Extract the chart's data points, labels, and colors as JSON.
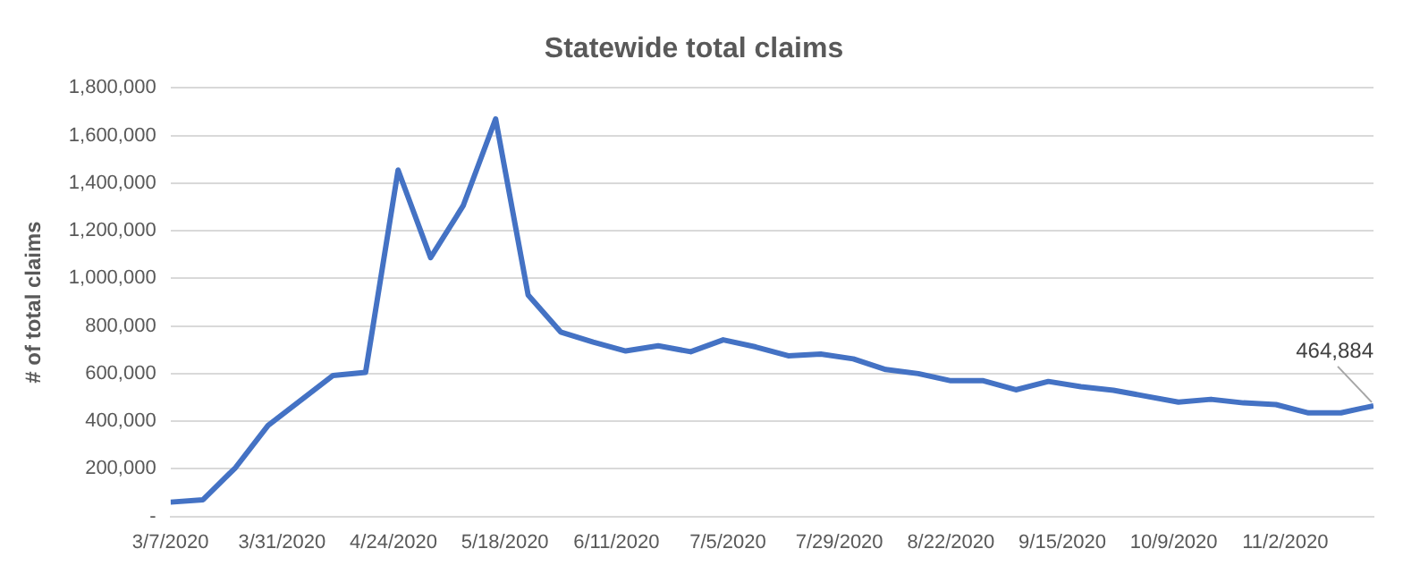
{
  "chart_data": {
    "type": "line",
    "title": "Statewide total claims",
    "ylabel": "# of total claims",
    "x": [
      "2020-03-07",
      "2020-03-14",
      "2020-03-21",
      "2020-03-28",
      "2020-04-04",
      "2020-04-11",
      "2020-04-18",
      "2020-04-25",
      "2020-05-02",
      "2020-05-09",
      "2020-05-16",
      "2020-05-23",
      "2020-05-30",
      "2020-06-06",
      "2020-06-13",
      "2020-06-20",
      "2020-06-27",
      "2020-07-04",
      "2020-07-11",
      "2020-07-18",
      "2020-07-25",
      "2020-08-01",
      "2020-08-08",
      "2020-08-15",
      "2020-08-22",
      "2020-08-29",
      "2020-09-05",
      "2020-09-12",
      "2020-09-19",
      "2020-09-26",
      "2020-10-03",
      "2020-10-10",
      "2020-10-17",
      "2020-10-24",
      "2020-10-31",
      "2020-11-07",
      "2020-11-14",
      "2020-11-21"
    ],
    "series": [
      {
        "color": "#4472c4",
        "values": [
          60000,
          70000,
          205000,
          382000,
          487000,
          592000,
          605000,
          1455000,
          1087000,
          1305000,
          1670000,
          930000,
          775000,
          732000,
          695000,
          717000,
          692000,
          742000,
          712000,
          675000,
          682000,
          662000,
          617000,
          600000,
          570000,
          570000,
          532000,
          567000,
          545000,
          530000,
          505000,
          480000,
          492000,
          477000,
          470000,
          435000,
          435000,
          464884
        ]
      }
    ],
    "xlim": [
      "2020-03-07",
      "2020-11-21"
    ],
    "xticks": [
      {
        "value": "2020-03-07",
        "label": "3/7/2020"
      },
      {
        "value": "2020-03-31",
        "label": "3/31/2020"
      },
      {
        "value": "2020-04-24",
        "label": "4/24/2020"
      },
      {
        "value": "2020-05-18",
        "label": "5/18/2020"
      },
      {
        "value": "2020-06-11",
        "label": "6/11/2020"
      },
      {
        "value": "2020-07-05",
        "label": "7/5/2020"
      },
      {
        "value": "2020-07-29",
        "label": "7/29/2020"
      },
      {
        "value": "2020-08-22",
        "label": "8/22/2020"
      },
      {
        "value": "2020-09-15",
        "label": "9/15/2020"
      },
      {
        "value": "2020-10-09",
        "label": "10/9/2020"
      },
      {
        "value": "2020-11-02",
        "label": "11/2/2020"
      }
    ],
    "ylim": [
      0,
      1800000
    ],
    "yticks": [
      {
        "value": 0,
        "label": "-"
      },
      {
        "value": 200000,
        "label": "200,000"
      },
      {
        "value": 400000,
        "label": "400,000"
      },
      {
        "value": 600000,
        "label": "600,000"
      },
      {
        "value": 800000,
        "label": "800,000"
      },
      {
        "value": 1000000,
        "label": "1,000,000"
      },
      {
        "value": 1200000,
        "label": "1,200,000"
      },
      {
        "value": 1400000,
        "label": "1,400,000"
      },
      {
        "value": 1600000,
        "label": "1,600,000"
      },
      {
        "value": 1800000,
        "label": "1,800,000"
      }
    ],
    "grid": "y",
    "legend": false,
    "marker": "none",
    "line_style": "solid",
    "annotations": [
      {
        "text": "464,884",
        "x": "2020-11-21",
        "y": 464884
      }
    ]
  }
}
